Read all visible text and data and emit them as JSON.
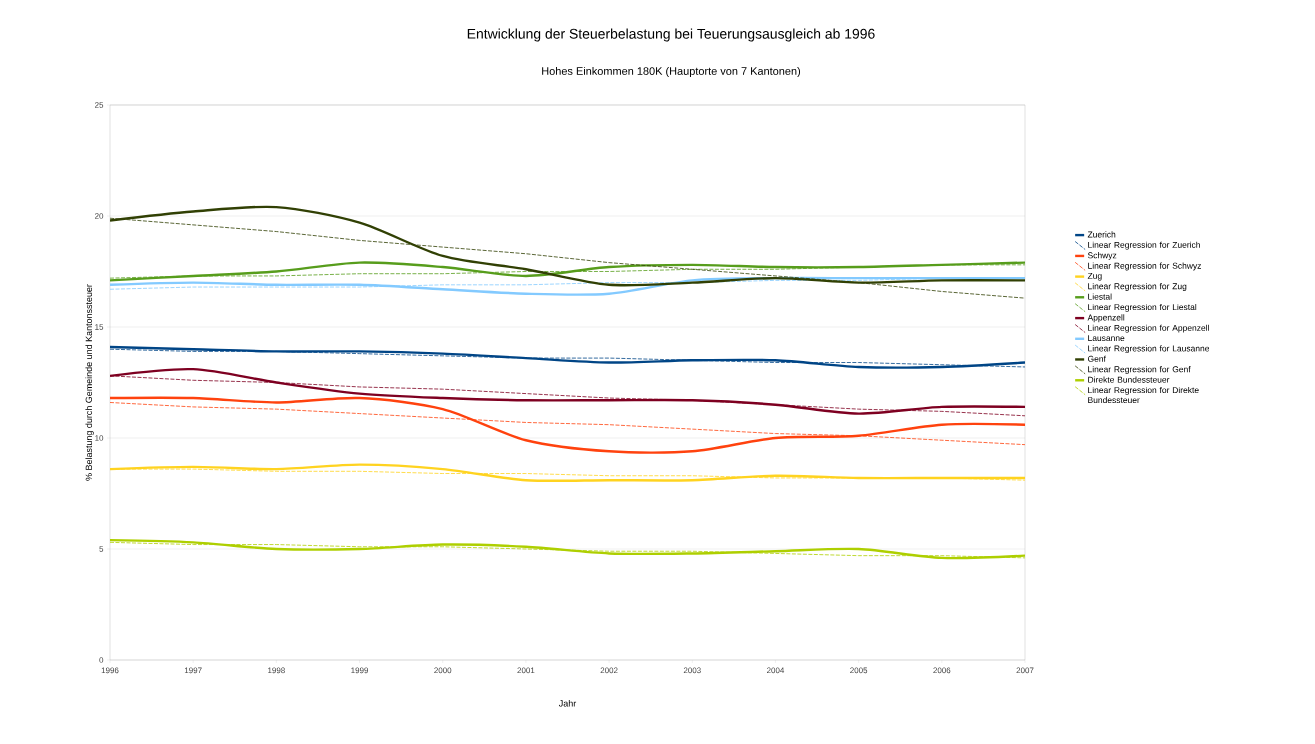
{
  "chart_data": {
    "type": "line",
    "title": "Entwicklung der Steuerbelastung bei Teuerungsausgleich ab 1996",
    "subtitle": "Hohes Einkommen 180K (Hauptorte von 7 Kantonen)",
    "xlabel": "Jahr",
    "ylabel": "% Belastung durch Gemeinde und Kantonssteuer",
    "x": [
      1996,
      1997,
      1998,
      1999,
      2000,
      2001,
      2002,
      2003,
      2004,
      2005,
      2006,
      2007
    ],
    "xlim": [
      1996,
      2007
    ],
    "xticks": [
      1996,
      1997,
      1998,
      1999,
      2000,
      2001,
      2002,
      2003,
      2004,
      2005,
      2006,
      2007
    ],
    "ylim": [
      0,
      25
    ],
    "yticks": [
      0,
      5,
      10,
      15,
      20,
      25
    ],
    "grid": "y",
    "legend": "right",
    "marker": "none",
    "series": [
      {
        "name": "Zuerich",
        "color": "#004586",
        "line_style": "solid",
        "values": [
          14.1,
          14.0,
          13.9,
          13.9,
          13.8,
          13.6,
          13.4,
          13.5,
          13.5,
          13.2,
          13.2,
          13.4
        ]
      },
      {
        "name": "Linear Regression for Zuerich",
        "color": "#004586",
        "line_style": "dashed",
        "values": [
          14.0,
          13.9,
          13.9,
          13.8,
          13.7,
          13.6,
          13.6,
          13.5,
          13.4,
          13.4,
          13.3,
          13.2
        ]
      },
      {
        "name": "Schwyz",
        "color": "#ff420e",
        "line_style": "solid",
        "values": [
          11.8,
          11.8,
          11.6,
          11.8,
          11.3,
          9.9,
          9.4,
          9.4,
          10.0,
          10.1,
          10.6,
          10.6
        ]
      },
      {
        "name": "Linear Regression for Schwyz",
        "color": "#ff420e",
        "line_style": "dashed",
        "values": [
          11.6,
          11.4,
          11.3,
          11.1,
          10.9,
          10.7,
          10.6,
          10.4,
          10.2,
          10.1,
          9.9,
          9.7
        ]
      },
      {
        "name": "Zug",
        "color": "#ffd320",
        "line_style": "solid",
        "values": [
          8.6,
          8.7,
          8.6,
          8.8,
          8.6,
          8.1,
          8.1,
          8.1,
          8.3,
          8.2,
          8.2,
          8.2
        ]
      },
      {
        "name": "Linear Regression for Zug",
        "color": "#ffd320",
        "line_style": "dashed",
        "values": [
          8.6,
          8.6,
          8.5,
          8.5,
          8.4,
          8.4,
          8.3,
          8.3,
          8.2,
          8.2,
          8.2,
          8.1
        ]
      },
      {
        "name": "Liestal",
        "color": "#579d1c",
        "line_style": "solid",
        "values": [
          17.1,
          17.3,
          17.5,
          17.9,
          17.7,
          17.3,
          17.7,
          17.8,
          17.7,
          17.7,
          17.8,
          17.9
        ]
      },
      {
        "name": "Linear Regression for Liestal",
        "color": "#579d1c",
        "line_style": "dashed",
        "values": [
          17.2,
          17.3,
          17.3,
          17.4,
          17.4,
          17.5,
          17.5,
          17.6,
          17.6,
          17.7,
          17.8,
          17.8
        ]
      },
      {
        "name": "Appenzell",
        "color": "#7e0021",
        "line_style": "solid",
        "values": [
          12.8,
          13.1,
          12.5,
          12.0,
          11.8,
          11.7,
          11.7,
          11.7,
          11.5,
          11.1,
          11.4,
          11.4
        ]
      },
      {
        "name": "Linear Regression for Appenzell",
        "color": "#7e0021",
        "line_style": "dashed",
        "values": [
          12.8,
          12.6,
          12.5,
          12.3,
          12.2,
          12.0,
          11.8,
          11.7,
          11.5,
          11.3,
          11.2,
          11.0
        ]
      },
      {
        "name": "Lausanne",
        "color": "#83caff",
        "line_style": "solid",
        "values": [
          16.9,
          17.0,
          16.9,
          16.9,
          16.7,
          16.5,
          16.5,
          17.1,
          17.2,
          17.2,
          17.2,
          17.2
        ]
      },
      {
        "name": "Linear Regression for Lausanne",
        "color": "#83caff",
        "line_style": "dashed",
        "values": [
          16.7,
          16.8,
          16.8,
          16.8,
          16.9,
          16.9,
          17.0,
          17.0,
          17.1,
          17.1,
          17.2,
          17.2
        ]
      },
      {
        "name": "Genf",
        "color": "#314004",
        "line_style": "solid",
        "values": [
          19.8,
          20.2,
          20.4,
          19.7,
          18.2,
          17.6,
          16.9,
          17.0,
          17.2,
          17.0,
          17.1,
          17.1
        ]
      },
      {
        "name": "Linear Regression for Genf",
        "color": "#314004",
        "line_style": "dashed",
        "values": [
          19.9,
          19.6,
          19.3,
          18.9,
          18.6,
          18.3,
          17.9,
          17.6,
          17.3,
          17.0,
          16.6,
          16.3
        ]
      },
      {
        "name": "Direkte Bundessteuer",
        "color": "#aecf00",
        "line_style": "solid",
        "values": [
          5.4,
          5.3,
          5.0,
          5.0,
          5.2,
          5.1,
          4.8,
          4.8,
          4.9,
          5.0,
          4.6,
          4.7
        ]
      },
      {
        "name": "Linear Regression for Direkte Bundessteuer",
        "color": "#aecf00",
        "line_style": "dashed",
        "values": [
          5.3,
          5.2,
          5.2,
          5.1,
          5.1,
          5.0,
          4.9,
          4.9,
          4.8,
          4.7,
          4.7,
          4.6
        ]
      }
    ]
  }
}
